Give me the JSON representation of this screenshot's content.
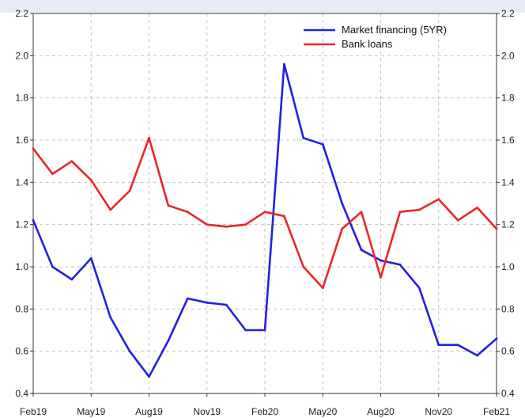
{
  "chart_data": {
    "type": "line",
    "title": "",
    "xlabel": "",
    "ylabel": "",
    "x": [
      "Feb19",
      "Mar19",
      "Apr19",
      "May19",
      "Jun19",
      "Jul19",
      "Aug19",
      "Sep19",
      "Oct19",
      "Nov19",
      "Dec19",
      "Jan20",
      "Feb20",
      "Mar20",
      "Apr20",
      "May20",
      "Jun20",
      "Jul20",
      "Aug20",
      "Sep20",
      "Oct20",
      "Nov20",
      "Dec20",
      "Jan21",
      "Feb21"
    ],
    "x_tick_labels": [
      "Feb19",
      "May19",
      "Aug19",
      "Nov19",
      "Feb20",
      "May20",
      "Aug20",
      "Nov20",
      "Feb21"
    ],
    "ylim": [
      0.4,
      2.2
    ],
    "y_ticks": [
      "0.4",
      "0.6",
      "0.8",
      "1.0",
      "1.2",
      "1.4",
      "1.6",
      "1.8",
      "2.0",
      "2.2"
    ],
    "grid": true,
    "legend_position": "top-right",
    "series": [
      {
        "name": "Market financing (5YR)",
        "color": "#2121e0",
        "values": [
          1.22,
          1.0,
          0.94,
          1.04,
          0.76,
          0.6,
          0.48,
          0.65,
          0.85,
          0.83,
          0.82,
          0.7,
          0.7,
          1.96,
          1.61,
          1.58,
          1.3,
          1.08,
          1.03,
          1.01,
          0.9,
          0.63,
          0.63,
          0.58,
          0.66
        ]
      },
      {
        "name": "Bank loans",
        "color": "#e8262a",
        "values": [
          1.56,
          1.44,
          1.5,
          1.41,
          1.27,
          1.36,
          1.61,
          1.29,
          1.26,
          1.2,
          1.19,
          1.2,
          1.26,
          1.24,
          1.0,
          0.9,
          1.18,
          1.26,
          0.95,
          1.26,
          1.27,
          1.32,
          1.22,
          1.28,
          1.18
        ]
      }
    ]
  }
}
